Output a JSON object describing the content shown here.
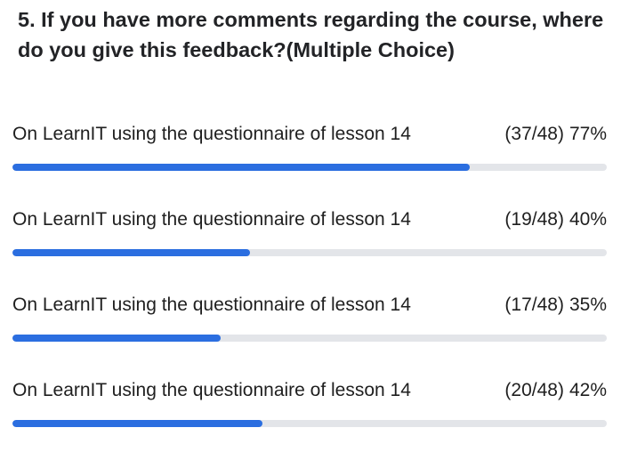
{
  "question": {
    "title": "5. If you have more comments regarding the course, where do you give this feedback?(Multiple Choice)"
  },
  "colors": {
    "accent": "#2b6ee0",
    "track": "#e3e5e9",
    "text": "#222326"
  },
  "options": [
    {
      "label": "On LearnIT using the questionnaire of lesson 14",
      "count": "(37/48)",
      "percent_label": "77%",
      "fill_fraction": 0.77
    },
    {
      "label": "On LearnIT using the questionnaire of lesson 14",
      "count": "(19/48)",
      "percent_label": "40%",
      "fill_fraction": 0.4
    },
    {
      "label": "On LearnIT using the questionnaire of lesson 14",
      "count": "(17/48)",
      "percent_label": "35%",
      "fill_fraction": 0.35
    },
    {
      "label": "On LearnIT using the questionnaire of lesson 14",
      "count": "(20/48)",
      "percent_label": "42%",
      "fill_fraction": 0.42
    }
  ]
}
